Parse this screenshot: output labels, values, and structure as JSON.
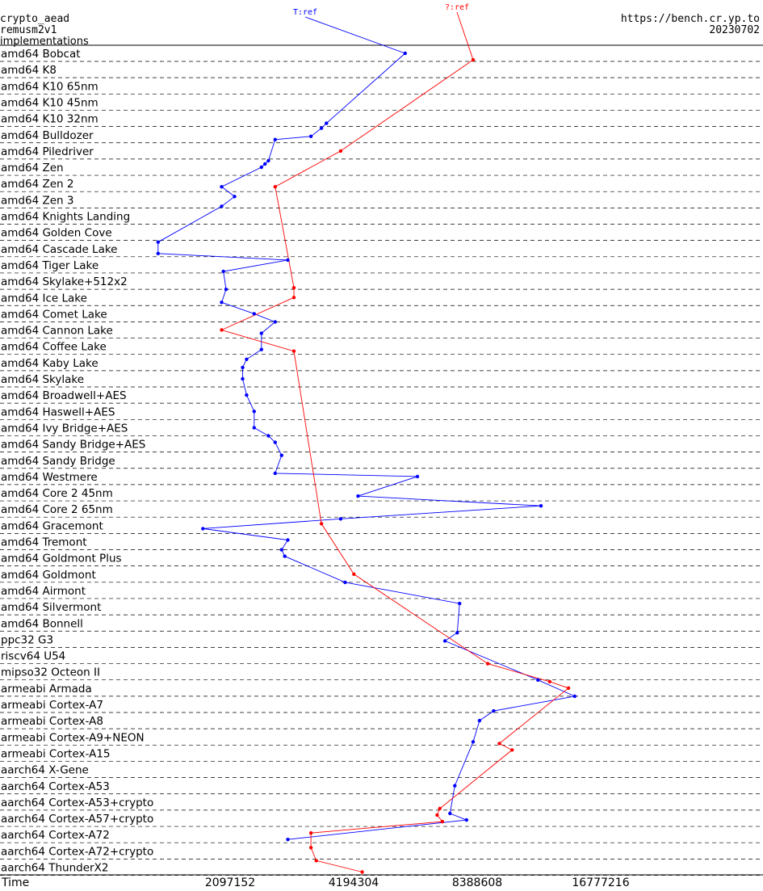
{
  "header": {
    "primitive": "crypto_aead",
    "algorithm": "remusm2v1",
    "section": "implementations",
    "site": "https://bench.cr.yp.to",
    "date": "20230702",
    "series_blue_label": "T:ref",
    "series_red_label": "?:ref"
  },
  "chart_data": {
    "type": "line",
    "xlabel": "Time",
    "x_scale": "log2",
    "xlim": [
      1048576,
      33554432
    ],
    "x_ticks": [
      2097152,
      4194304,
      8388608,
      16777216
    ],
    "categories": [
      "amd64 Bobcat",
      "amd64 K8",
      "amd64 K10 65nm",
      "amd64 K10 45nm",
      "amd64 K10 32nm",
      "amd64 Bulldozer",
      "amd64 Piledriver",
      "amd64 Zen",
      "amd64 Zen 2",
      "amd64 Zen 3",
      "amd64 Knights Landing",
      "amd64 Golden Cove",
      "amd64 Cascade Lake",
      "amd64 Tiger Lake",
      "amd64 Skylake+512x2",
      "amd64 Ice Lake",
      "amd64 Comet Lake",
      "amd64 Cannon Lake",
      "amd64 Coffee Lake",
      "amd64 Kaby Lake",
      "amd64 Skylake",
      "amd64 Broadwell+AES",
      "amd64 Haswell+AES",
      "amd64 Ivy Bridge+AES",
      "amd64 Sandy Bridge+AES",
      "amd64 Sandy Bridge",
      "amd64 Westmere",
      "amd64 Core 2 45nm",
      "amd64 Core 2 65nm",
      "amd64 Gracemont",
      "amd64 Tremont",
      "amd64 Goldmont Plus",
      "amd64 Goldmont",
      "amd64 Airmont",
      "amd64 Silvermont",
      "amd64 Bonnell",
      "ppc32 G3",
      "riscv64 U54",
      "mipso32 Octeon II",
      "armeabi Armada",
      "armeabi Cortex-A7",
      "armeabi Cortex-A8",
      "armeabi Cortex-A9+NEON",
      "armeabi Cortex-A15",
      "aarch64 X-Gene",
      "aarch64 Cortex-A53",
      "aarch64 Cortex-A53+crypto",
      "aarch64 Cortex-A57+crypto",
      "aarch64 Cortex-A72",
      "aarch64 Cortex-A72+crypto",
      "aarch64 ThunderX2"
    ],
    "series": [
      {
        "name": "T:ref",
        "color": "#0000ff",
        "points": [
          [
            0,
            5600000
          ],
          [
            4.3,
            3600000
          ],
          [
            4.6,
            3500000
          ],
          [
            5.1,
            3300000
          ],
          [
            5.3,
            2700000
          ],
          [
            6.6,
            2600000
          ],
          [
            6.8,
            2550000
          ],
          [
            7.0,
            2500000
          ],
          [
            8.2,
            2000000
          ],
          [
            8.8,
            2150000
          ],
          [
            9.4,
            2000000
          ],
          [
            11.6,
            1400000
          ],
          [
            12.3,
            1400000
          ],
          [
            12.7,
            2900000
          ],
          [
            13.4,
            2020000
          ],
          [
            14.5,
            2050000
          ],
          [
            15.3,
            2000000
          ],
          [
            16.0,
            2400000
          ],
          [
            16.5,
            2700000
          ],
          [
            17.2,
            2500000
          ],
          [
            18.2,
            2500000
          ],
          [
            18.8,
            2300000
          ],
          [
            19.3,
            2250000
          ],
          [
            20.0,
            2250000
          ],
          [
            21.0,
            2300000
          ],
          [
            22.0,
            2400000
          ],
          [
            23.0,
            2400000
          ],
          [
            23.5,
            2600000
          ],
          [
            23.9,
            2700000
          ],
          [
            24.7,
            2800000
          ],
          [
            25.8,
            2700000
          ],
          [
            26.0,
            6000000
          ],
          [
            27.2,
            4300000
          ],
          [
            27.8,
            12000000
          ],
          [
            28.6,
            3900000
          ],
          [
            29.2,
            1800000
          ],
          [
            29.9,
            2900000
          ],
          [
            30.5,
            2800000
          ],
          [
            30.9,
            2850000
          ],
          [
            32.5,
            4000000
          ],
          [
            33.8,
            7600000
          ],
          [
            35.6,
            7500000
          ],
          [
            36.1,
            7000000
          ],
          [
            38.5,
            11800000
          ],
          [
            39.5,
            14500000
          ],
          [
            40.4,
            9200000
          ],
          [
            41.0,
            8500000
          ],
          [
            42.3,
            8200000
          ],
          [
            45.0,
            7400000
          ],
          [
            46.7,
            7200000
          ],
          [
            47.1,
            7900000
          ],
          [
            48.3,
            2900000
          ]
        ]
      },
      {
        "name": "?:ref",
        "color": "#ff0000",
        "points": [
          [
            0.4,
            8200000
          ],
          [
            6.0,
            3900000
          ],
          [
            8.2,
            2700000
          ],
          [
            14.4,
            3000000
          ],
          [
            15.0,
            3000000
          ],
          [
            17.0,
            2000000
          ],
          [
            18.3,
            3000000
          ],
          [
            28.9,
            3500000
          ],
          [
            32.0,
            4200000
          ],
          [
            37.5,
            8900000
          ],
          [
            38.6,
            12600000
          ],
          [
            39.0,
            14000000
          ],
          [
            42.4,
            9500000
          ],
          [
            42.8,
            10200000
          ],
          [
            46.4,
            6800000
          ],
          [
            46.8,
            6700000
          ],
          [
            47.2,
            6900000
          ],
          [
            47.9,
            3300000
          ],
          [
            48.8,
            3300000
          ],
          [
            49.6,
            3400000
          ],
          [
            50.3,
            4400000
          ]
        ]
      }
    ]
  }
}
